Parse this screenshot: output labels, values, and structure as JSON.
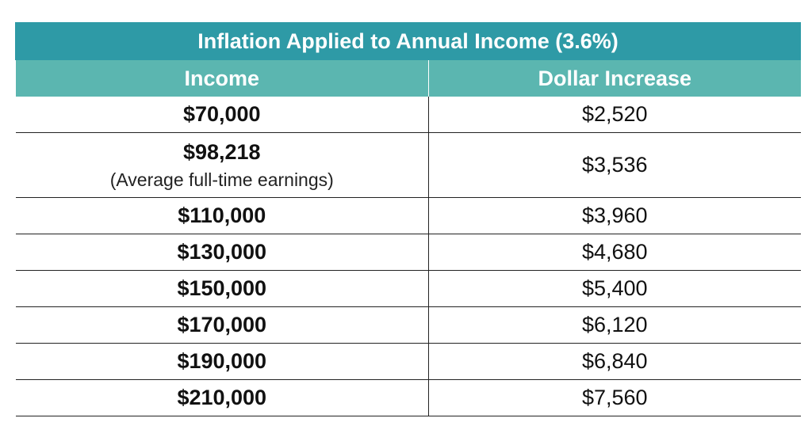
{
  "chart_data": {
    "type": "table",
    "title": "Inflation Applied to Annual Income (3.6%)",
    "columns": [
      "Income",
      "Dollar Increase"
    ],
    "rows": [
      {
        "income": "$70,000",
        "note": "",
        "increase": "$2,520"
      },
      {
        "income": "$98,218",
        "note": "(Average full-time earnings)",
        "increase": "$3,536"
      },
      {
        "income": "$110,000",
        "note": "",
        "increase": "$3,960"
      },
      {
        "income": "$130,000",
        "note": "",
        "increase": "$4,680"
      },
      {
        "income": "$150,000",
        "note": "",
        "increase": "$5,400"
      },
      {
        "income": "$170,000",
        "note": "",
        "increase": "$6,120"
      },
      {
        "income": "$190,000",
        "note": "",
        "increase": "$6,840"
      },
      {
        "income": "$210,000",
        "note": "",
        "increase": "$7,560"
      }
    ],
    "colors": {
      "title_background": "#2e9aa6",
      "header_background": "#5bb6b0",
      "header_text": "#ffffff",
      "grid_lines": "#222222"
    }
  }
}
